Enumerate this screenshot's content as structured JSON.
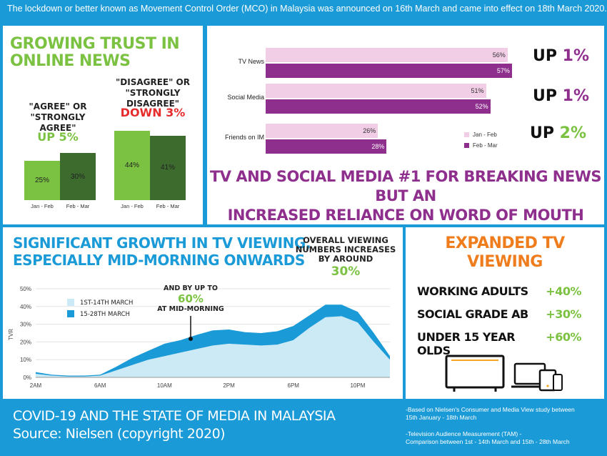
{
  "banner": "The lockdown or better known as Movement Control Order (MCO) in Malaysia was announced on 16th March and came into effect on 18th March 2020.",
  "colors": {
    "blue": "#1a9ad6",
    "green": "#7cc242",
    "dark_green": "#3d6b2e",
    "pink": "#f2cde6",
    "purple": "#8e2f8d",
    "orange": "#f07d1d",
    "red": "#e52b2b",
    "light_blue": "#cce9f6"
  },
  "trust": {
    "title_line1": "GROWING TRUST IN",
    "title_line2": "ONLINE NEWS",
    "agree": {
      "label_line1": "\"AGREE\" OR",
      "label_line2": "\"STRONGLY AGREE\"",
      "change": "UP 5%"
    },
    "disagree": {
      "label_line1": "\"DISAGREE\" OR",
      "label_line2": "\"STRONGLY DISAGREE\"",
      "change": "DOWN 3%"
    }
  },
  "breaking": {
    "headline_line1": "TV AND SOCIAL MEDIA #1 FOR BREAKING NEWS BUT AN",
    "headline_line2": "INCREASED RELIANCE ON WORD OF MOUTH",
    "changes": [
      {
        "up": "UP ",
        "pct": "1%"
      },
      {
        "up": "UP ",
        "pct": "1%"
      },
      {
        "up": "UP ",
        "pct": "2%"
      }
    ]
  },
  "growth": {
    "title_line1": "SIGNIFICANT GROWTH IN TV VIEWING,",
    "title_line2": "ESPECIALLY MID-MORNING ONWARDS",
    "overall_line1": "OVERALL VIEWING",
    "overall_line2": "NUMBERS INCREASES",
    "overall_line3": "BY AROUND",
    "overall_value": "30%",
    "morning_line1": "AND BY UP TO",
    "morning_value": "60%",
    "morning_line2": "AT MID-MORNING"
  },
  "expanded": {
    "title_line1": "EXPANDED TV",
    "title_line2": "VIEWING",
    "rows": [
      {
        "label": "WORKING ADULTS",
        "value": "+40%"
      },
      {
        "label": "SOCIAL GRADE AB",
        "value": "+30%"
      },
      {
        "label": "UNDER 15 YEAR OLDS",
        "value": "+60%"
      }
    ]
  },
  "footer": {
    "title_line1": "COVID-19 AND THE STATE OF MEDIA IN MALAYSIA",
    "title_line2": "Source: Nielsen (copyright 2020)",
    "note1_line1": "-Based on Nielsen's Consumer and Media View study between",
    "note1_line2": "15th January - 18th March",
    "note2_line1": "-Television Audience Measurement (TAM) -",
    "note2_line2": "Comparison between 1st - 14th March and 15th - 28th March"
  },
  "chart_data": [
    {
      "type": "bar",
      "categories": [
        "Jan - Feb",
        "Feb - Mar"
      ],
      "series": [
        {
          "name": "\"AGREE\" OR \"STRONGLY AGREE\"",
          "values": [
            25,
            30
          ],
          "labels": [
            "25%",
            "30%"
          ]
        },
        {
          "name": "\"DISAGREE\" OR \"STRONGLY DISAGREE\"",
          "values": [
            44,
            41
          ],
          "labels": [
            "44%",
            "41%"
          ]
        }
      ]
    },
    {
      "type": "bar",
      "orientation": "horizontal",
      "categories": [
        "TV News",
        "Social Media",
        "Friends on IM"
      ],
      "series": [
        {
          "name": "Jan - Feb",
          "values": [
            56,
            51,
            26
          ],
          "labels": [
            "56%",
            "51%",
            "26%"
          ]
        },
        {
          "name": "Feb - Mar",
          "values": [
            57,
            52,
            28
          ],
          "labels": [
            "57%",
            "52%",
            "28%"
          ]
        }
      ],
      "legend": "bottom-right"
    },
    {
      "type": "area",
      "ylabel": "TVR",
      "y_ticks": [
        "50%",
        "40%",
        "30%",
        "20%",
        "10%",
        "0%"
      ],
      "ylim": [
        0,
        50
      ],
      "x_ticks": [
        "2AM",
        "6AM",
        "10AM",
        "2PM",
        "6PM",
        "10PM"
      ],
      "x_tick_hours": [
        2,
        6,
        10,
        14,
        18,
        22
      ],
      "x": [
        2,
        3,
        4,
        5,
        6,
        7,
        8,
        9,
        10,
        11,
        12,
        13,
        14,
        15,
        16,
        17,
        18,
        19,
        20,
        21,
        22,
        23,
        24
      ],
      "series": [
        {
          "name": "1ST-14TH MARCH",
          "values": [
            2,
            1,
            0.5,
            0.5,
            1,
            4,
            7,
            10,
            12,
            14,
            16,
            18,
            19,
            18.5,
            18,
            18.5,
            21,
            28,
            34,
            34.5,
            31,
            20,
            10
          ]
        },
        {
          "name": "15-28TH MARCH",
          "values": [
            3,
            1.5,
            1,
            1,
            1.5,
            6,
            11,
            15,
            19,
            21,
            24,
            26.5,
            27,
            25.5,
            25,
            26,
            29,
            35,
            41,
            41,
            37,
            25,
            12
          ]
        }
      ],
      "legend": "top-left"
    }
  ]
}
